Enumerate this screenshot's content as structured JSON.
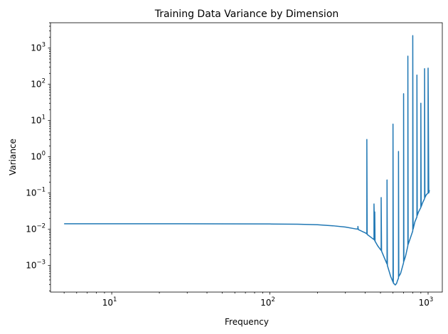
{
  "chart_data": {
    "type": "line",
    "title": "Training Data Variance by Dimension",
    "xlabel": "Frequency",
    "ylabel": "Variance",
    "xscale": "log",
    "yscale": "log",
    "xlim": [
      4.1,
      1230
    ],
    "ylim": [
      0.000185,
      5000
    ],
    "grid": false,
    "x_ticks": [
      {
        "value": 10,
        "base": "10",
        "exp": "1"
      },
      {
        "value": 100,
        "base": "10",
        "exp": "2"
      },
      {
        "value": 1000,
        "base": "10",
        "exp": "3"
      }
    ],
    "y_ticks": [
      {
        "value": 0.001,
        "base": "10",
        "exp": "−3"
      },
      {
        "value": 0.01,
        "base": "10",
        "exp": "−2"
      },
      {
        "value": 0.1,
        "base": "10",
        "exp": "−1"
      },
      {
        "value": 1,
        "base": "10",
        "exp": "0"
      },
      {
        "value": 10,
        "base": "10",
        "exp": "1"
      },
      {
        "value": 100,
        "base": "10",
        "exp": "2"
      },
      {
        "value": 1000,
        "base": "10",
        "exp": "3"
      }
    ],
    "series": [
      {
        "color": "#1f77b4",
        "x": [
          5,
          10,
          20,
          50,
          100,
          150,
          200,
          250,
          300,
          350,
          360,
          360,
          362,
          400,
          410,
          410,
          412,
          440,
          455,
          455,
          460,
          460,
          462,
          480,
          505,
          505,
          508,
          530,
          550,
          550,
          553,
          580,
          600,
          600,
          603,
          620,
          632,
          640,
          650,
          650,
          653,
          670,
          700,
          700,
          703,
          720,
          745,
          745,
          748,
          770,
          800,
          800,
          804,
          825,
          850,
          850,
          854,
          870,
          900,
          900,
          904,
          925,
          950,
          950,
          955,
          975,
          1000,
          1000,
          1010,
          1020
        ],
        "y": [
          0.0142,
          0.0142,
          0.0142,
          0.0141,
          0.014,
          0.0138,
          0.0133,
          0.0125,
          0.0115,
          0.0102,
          0.0102,
          0.012,
          0.0098,
          0.008,
          0.0075,
          3.0,
          0.0072,
          0.0058,
          0.0052,
          0.05,
          0.0048,
          0.03,
          0.0047,
          0.0035,
          0.0026,
          0.075,
          0.0025,
          0.0016,
          0.0011,
          0.23,
          0.001,
          0.0005,
          0.00035,
          8.0,
          0.00033,
          0.00029,
          0.00032,
          0.00038,
          0.00045,
          1.4,
          0.0005,
          0.0006,
          0.0012,
          55,
          0.0013,
          0.0018,
          0.0035,
          600,
          0.0038,
          0.0055,
          0.009,
          2200,
          0.01,
          0.016,
          0.022,
          180,
          0.024,
          0.03,
          0.04,
          30,
          0.042,
          0.055,
          0.07,
          270,
          0.075,
          0.09,
          0.1,
          280,
          0.1,
          0.12
        ]
      }
    ]
  }
}
